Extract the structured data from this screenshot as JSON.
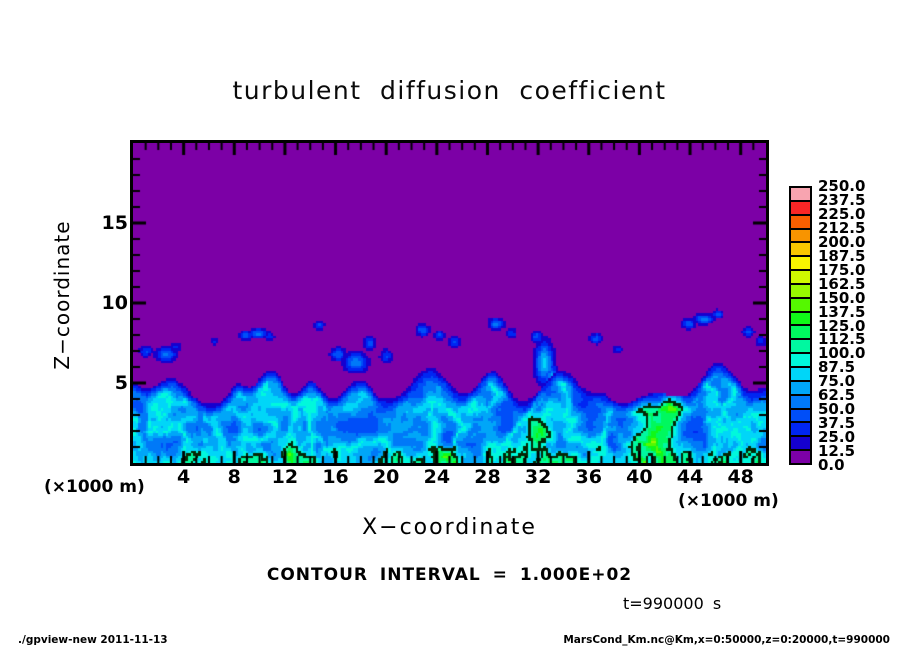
{
  "footer": {
    "left": "./gpview-new  2011-11-13",
    "right": "MarsCond_Km.nc@Km,x=0:50000,z=0:20000,t=990000"
  },
  "chart_data": {
    "type": "heatmap",
    "title": "turbulent diffusion coefficient",
    "xlabel": "X−coordinate",
    "ylabel": "Z−coordinate",
    "x_unit": "(×1000 m)",
    "y_unit": "(×1000 m)",
    "xlim": [
      0,
      50
    ],
    "ylim": [
      0,
      20
    ],
    "x_major_ticks": [
      4,
      8,
      12,
      16,
      20,
      24,
      28,
      32,
      36,
      40,
      44,
      48
    ],
    "y_major_ticks": [
      5,
      10,
      15
    ],
    "minor_tick_step": 1,
    "grid": false,
    "contour_interval": 100.0,
    "contour_interval_text": "CONTOUR INTERVAL = 1.000E+02",
    "time_text": "t=990000 s",
    "background_value_color": "#7c00a6",
    "contour_line_color": "#062806",
    "colorbar": {
      "range": [
        0.0,
        250.0
      ],
      "level_step": 12.5,
      "tick_labels_top_to_bottom": [
        "250.0",
        "237.5",
        "225.0",
        "212.5",
        "200.0",
        "187.5",
        "175.0",
        "162.5",
        "150.0",
        "137.5",
        "125.0",
        "112.5",
        "100.0",
        "87.5",
        "75.0",
        "62.5",
        "50.0",
        "37.5",
        "25.0",
        "12.5",
        "0.0"
      ],
      "colors_low_to_high": [
        "#7c00a6",
        "#1500cf",
        "#0026f2",
        "#004ef8",
        "#0079f8",
        "#00a6f8",
        "#00d6f8",
        "#00f8dc",
        "#00f8a0",
        "#00f85e",
        "#10f818",
        "#55f800",
        "#97f800",
        "#cff800",
        "#f8f400",
        "#f8c600",
        "#f89400",
        "#f85e00",
        "#f82626",
        "#f8a4b0"
      ]
    },
    "field_model": {
      "description": "Convective boundary layer: diffusion coefficient ~25-95 (blue/cyan swirls) below a wavy top at z~4-6.3 (x1000 m); ~0 (purple) above, with small detached turbulent blobs at z~6-9.5 and a >100 (green, contoured) hotspot near x~41.",
      "grid_nx": 253,
      "grid_nz": 128,
      "boundary_base": 3.8,
      "boundary_noise_amp": 0.5,
      "boundary_bumps": [
        {
          "x": -0.5,
          "a": 1.2,
          "w": 1.8
        },
        {
          "x": 3.0,
          "a": 1.8,
          "w": 1.6
        },
        {
          "x": 8.3,
          "a": 1.1,
          "w": 1.0
        },
        {
          "x": 10.9,
          "a": 2.0,
          "w": 1.3
        },
        {
          "x": 14.0,
          "a": 1.2,
          "w": 1.0
        },
        {
          "x": 17.8,
          "a": 1.5,
          "w": 1.4
        },
        {
          "x": 23.4,
          "a": 2.3,
          "w": 1.9
        },
        {
          "x": 28.4,
          "a": 2.0,
          "w": 1.5
        },
        {
          "x": 33.8,
          "a": 1.9,
          "w": 1.9
        },
        {
          "x": 37.0,
          "a": 0.6,
          "w": 1.0
        },
        {
          "x": 41.0,
          "a": 0.7,
          "w": 1.4
        },
        {
          "x": 46.4,
          "a": 2.4,
          "w": 1.9
        },
        {
          "x": 50.5,
          "a": 1.2,
          "w": 1.5
        }
      ],
      "hotspots": [
        {
          "x": 41.2,
          "z": 1.7,
          "rx": 1.5,
          "rz": 1.6,
          "a": 72
        },
        {
          "x": 42.5,
          "z": 3.6,
          "rx": 0.7,
          "rz": 1.1,
          "a": 58
        },
        {
          "x": 43.3,
          "z": 4.8,
          "rx": 0.45,
          "rz": 0.7,
          "a": 40
        },
        {
          "x": 32.2,
          "z": 1.9,
          "rx": 0.8,
          "rz": 0.8,
          "a": 38
        },
        {
          "x": 24.7,
          "z": 0.4,
          "rx": 0.9,
          "rz": 0.5,
          "a": 42
        },
        {
          "x": 12.2,
          "z": 0.5,
          "rx": 0.5,
          "rz": 0.6,
          "a": 35
        },
        {
          "x": 20.9,
          "z": 0.4,
          "rx": 0.5,
          "rz": 0.5,
          "a": 34
        }
      ],
      "detached_blobs": [
        {
          "x": 1.0,
          "z": 7.0,
          "rx": 0.5,
          "rz": 0.35,
          "a": 40
        },
        {
          "x": 2.6,
          "z": 6.8,
          "rx": 0.8,
          "rz": 0.45,
          "a": 55
        },
        {
          "x": 3.4,
          "z": 7.3,
          "rx": 0.4,
          "rz": 0.3,
          "a": 30
        },
        {
          "x": 6.4,
          "z": 7.6,
          "rx": 0.35,
          "rz": 0.25,
          "a": 26
        },
        {
          "x": 8.9,
          "z": 8.0,
          "rx": 0.55,
          "rz": 0.3,
          "a": 45
        },
        {
          "x": 9.9,
          "z": 8.1,
          "rx": 0.75,
          "rz": 0.3,
          "a": 55
        },
        {
          "x": 10.8,
          "z": 7.9,
          "rx": 0.4,
          "rz": 0.28,
          "a": 35
        },
        {
          "x": 14.7,
          "z": 8.6,
          "rx": 0.4,
          "rz": 0.3,
          "a": 40
        },
        {
          "x": 16.2,
          "z": 6.8,
          "rx": 0.6,
          "rz": 0.4,
          "a": 50
        },
        {
          "x": 17.6,
          "z": 6.3,
          "rx": 0.9,
          "rz": 0.6,
          "a": 60
        },
        {
          "x": 18.7,
          "z": 7.5,
          "rx": 0.5,
          "rz": 0.4,
          "a": 45
        },
        {
          "x": 20.0,
          "z": 6.7,
          "rx": 0.5,
          "rz": 0.4,
          "a": 40
        },
        {
          "x": 22.9,
          "z": 8.3,
          "rx": 0.55,
          "rz": 0.35,
          "a": 50
        },
        {
          "x": 24.2,
          "z": 8.0,
          "rx": 0.45,
          "rz": 0.3,
          "a": 40
        },
        {
          "x": 25.4,
          "z": 7.6,
          "rx": 0.5,
          "rz": 0.35,
          "a": 42
        },
        {
          "x": 28.7,
          "z": 8.7,
          "rx": 0.6,
          "rz": 0.35,
          "a": 55
        },
        {
          "x": 29.9,
          "z": 8.1,
          "rx": 0.4,
          "rz": 0.3,
          "a": 38
        },
        {
          "x": 31.9,
          "z": 7.9,
          "rx": 0.45,
          "rz": 0.35,
          "a": 45
        },
        {
          "x": 32.5,
          "z": 6.3,
          "rx": 0.7,
          "rz": 1.2,
          "a": 80
        },
        {
          "x": 33.1,
          "z": 5.3,
          "rx": 0.5,
          "rz": 0.8,
          "a": 70
        },
        {
          "x": 36.6,
          "z": 7.8,
          "rx": 0.5,
          "rz": 0.35,
          "a": 42
        },
        {
          "x": 38.3,
          "z": 7.1,
          "rx": 0.4,
          "rz": 0.3,
          "a": 30
        },
        {
          "x": 43.9,
          "z": 8.7,
          "rx": 0.55,
          "rz": 0.3,
          "a": 50
        },
        {
          "x": 45.1,
          "z": 9.0,
          "rx": 0.7,
          "rz": 0.3,
          "a": 60
        },
        {
          "x": 46.2,
          "z": 9.3,
          "rx": 0.45,
          "rz": 0.28,
          "a": 45
        },
        {
          "x": 48.6,
          "z": 8.2,
          "rx": 0.5,
          "rz": 0.3,
          "a": 40
        },
        {
          "x": 49.6,
          "z": 7.6,
          "rx": 0.4,
          "rz": 0.3,
          "a": 35
        }
      ],
      "layer_value": {
        "floor": 15,
        "edge_width": 0.8,
        "fbm_amp": 26,
        "ridge_amp": 52,
        "bottom_boost": 22
      }
    }
  }
}
